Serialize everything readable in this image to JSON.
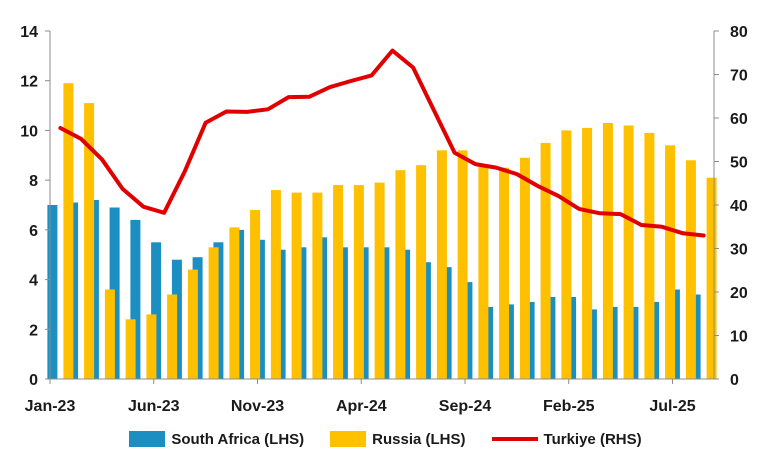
{
  "chart_data": {
    "type": "bar",
    "categories": [
      "Jan-23",
      "Feb-23",
      "Mar-23",
      "Apr-23",
      "May-23",
      "Jun-23",
      "Jul-23",
      "Aug-23",
      "Sep-23",
      "Oct-23",
      "Nov-23",
      "Dec-23",
      "Jan-24",
      "Feb-24",
      "Mar-24",
      "Apr-24",
      "May-24",
      "Jun-24",
      "Jul-24",
      "Aug-24",
      "Sep-24",
      "Oct-24",
      "Nov-24",
      "Dec-24",
      "Jan-25",
      "Feb-25",
      "Mar-25",
      "Apr-25",
      "May-25",
      "Jun-25",
      "Jul-25",
      "Aug-25"
    ],
    "x_tick_labels": [
      "Jan-23",
      "Jun-23",
      "Nov-23",
      "Apr-24",
      "Sep-24",
      "Feb-25",
      "Jul-25"
    ],
    "x_tick_indices": [
      0,
      5,
      10,
      15,
      20,
      25,
      30
    ],
    "series": [
      {
        "name": "South Africa (LHS)",
        "type": "bar",
        "axis": "left",
        "color": "#1b8fc1",
        "values": [
          7.0,
          7.1,
          7.2,
          6.9,
          6.4,
          5.5,
          4.8,
          4.9,
          5.5,
          6.0,
          5.6,
          5.2,
          5.3,
          5.7,
          5.3,
          5.3,
          5.3,
          5.2,
          4.7,
          4.5,
          3.9,
          2.9,
          3.0,
          3.1,
          3.3,
          3.3,
          2.8,
          2.9,
          2.9,
          3.1,
          3.6,
          3.4
        ]
      },
      {
        "name": "Russia (LHS)",
        "type": "bar",
        "axis": "left",
        "color": "#ffc000",
        "values": [
          11.9,
          11.1,
          3.6,
          2.4,
          2.6,
          3.4,
          4.4,
          5.3,
          6.1,
          6.8,
          7.6,
          7.5,
          7.5,
          7.8,
          7.8,
          7.9,
          8.4,
          8.6,
          9.2,
          9.2,
          8.6,
          8.5,
          8.9,
          9.5,
          10.0,
          10.1,
          10.3,
          10.2,
          9.9,
          9.4,
          8.8,
          8.1
        ]
      },
      {
        "name": "Turkiye (RHS)",
        "type": "line",
        "axis": "right",
        "color": "#e00000",
        "values": [
          57.7,
          55.2,
          50.5,
          43.7,
          39.6,
          38.2,
          47.8,
          58.9,
          61.5,
          61.4,
          62.0,
          64.8,
          64.9,
          67.1,
          68.5,
          69.8,
          75.5,
          71.6,
          61.8,
          52.0,
          49.4,
          48.6,
          47.1,
          44.4,
          42.1,
          39.1,
          38.1,
          37.9,
          35.4,
          35.0,
          33.5,
          33.0
        ]
      }
    ],
    "ylim_left": [
      0,
      14
    ],
    "yticks_left": [
      0,
      2,
      4,
      6,
      8,
      10,
      12,
      14
    ],
    "ylim_right": [
      0,
      80
    ],
    "yticks_right": [
      0,
      10,
      20,
      30,
      40,
      50,
      60,
      70,
      80
    ],
    "legend_position": "bottom",
    "grid": false
  },
  "legend": {
    "south_africa": "South Africa (LHS)",
    "russia": "Russia (LHS)",
    "turkiye": "Turkiye (RHS)"
  }
}
